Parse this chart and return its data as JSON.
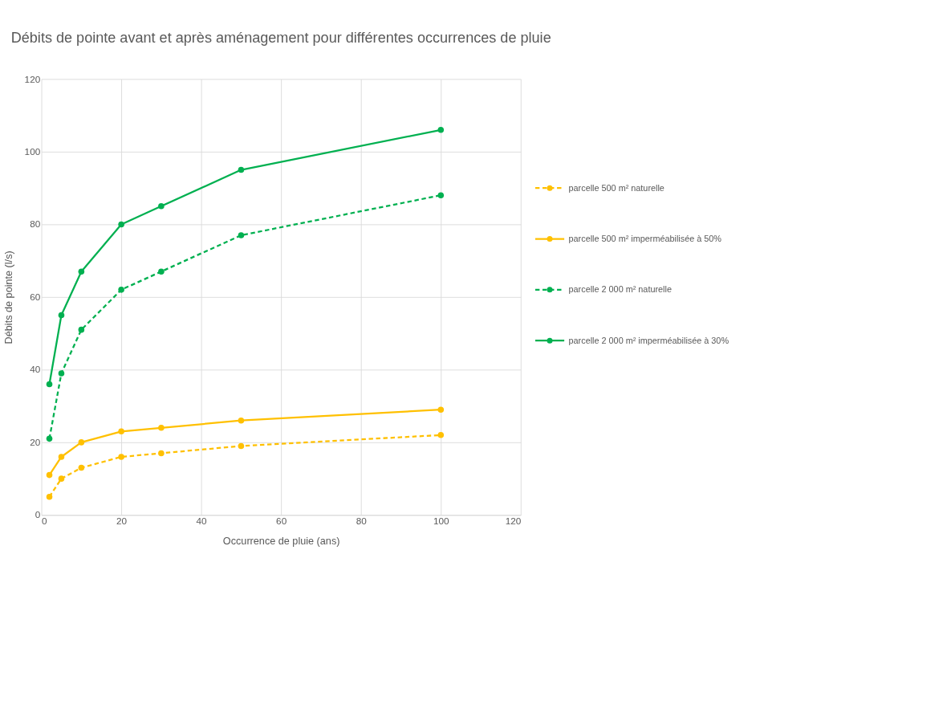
{
  "chart_data": {
    "type": "line",
    "title": "Débits de pointe avant et après aménagement pour différentes occurrences de pluie",
    "xlabel": "Occurrence de pluie (ans)",
    "ylabel": "Débits de pointe (l/s)",
    "x": [
      2,
      5,
      10,
      20,
      30,
      50,
      100
    ],
    "series": [
      {
        "name": "parcelle 500 m² naturelle",
        "color": "#ffc000",
        "line_style": "dashed",
        "values": [
          5,
          10,
          13,
          16,
          17,
          19,
          22
        ]
      },
      {
        "name": "parcelle 500 m² imperméabilisée à 50%",
        "color": "#ffc000",
        "line_style": "solid",
        "values": [
          11,
          16,
          20,
          23,
          24,
          26,
          29
        ]
      },
      {
        "name": "parcelle 2 000 m² naturelle",
        "color": "#00b050",
        "line_style": "dashed",
        "values": [
          21,
          39,
          51,
          62,
          67,
          77,
          88
        ]
      },
      {
        "name": "parcelle 2 000 m² imperméabilisée à 30%",
        "color": "#00b050",
        "line_style": "solid",
        "values": [
          36,
          55,
          67,
          80,
          85,
          95,
          106
        ]
      }
    ],
    "xlim": [
      0,
      120
    ],
    "xticks": [
      0,
      20,
      40,
      60,
      80,
      100,
      120
    ],
    "ylim": [
      0,
      120
    ],
    "yticks": [
      0,
      20,
      40,
      60,
      80,
      100,
      120
    ],
    "grid": true,
    "legend": "right",
    "marker": "circle"
  }
}
